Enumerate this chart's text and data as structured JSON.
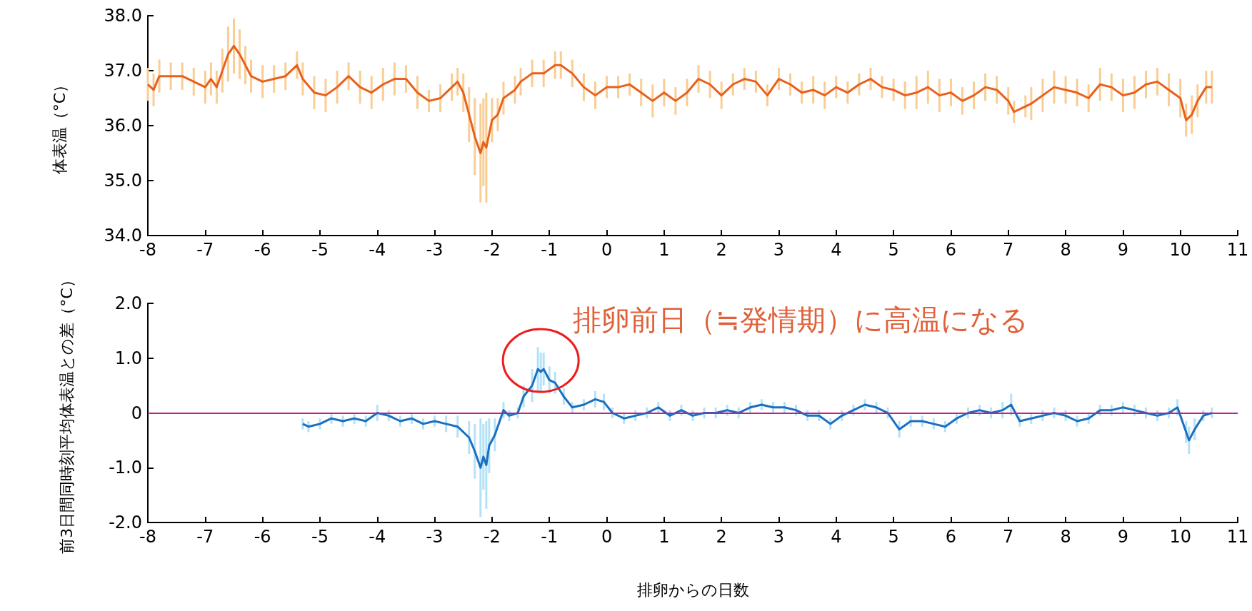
{
  "chart_data": [
    {
      "type": "line",
      "ylabel": "体表温（°C）",
      "xlim": [
        -8,
        11
      ],
      "xticks": [
        -8,
        -7,
        -6,
        -5,
        -4,
        -3,
        -2,
        -1,
        0,
        1,
        2,
        3,
        4,
        5,
        6,
        7,
        8,
        9,
        10,
        11
      ],
      "ylim": [
        34,
        38
      ],
      "yticks": [
        {
          "value": 34,
          "label": "34.0"
        },
        {
          "value": 35,
          "label": "35.0"
        },
        {
          "value": 36,
          "label": "36.0"
        },
        {
          "value": 37,
          "label": "37.0"
        },
        {
          "value": 38,
          "label": "38.0"
        }
      ],
      "marker": "none",
      "series": [
        {
          "color": "#e8601c",
          "x": [
            -8.0,
            -7.9,
            -7.8,
            -7.6,
            -7.4,
            -7.2,
            -7.0,
            -6.9,
            -6.8,
            -6.7,
            -6.6,
            -6.5,
            -6.4,
            -6.3,
            -6.2,
            -6.0,
            -5.8,
            -5.6,
            -5.4,
            -5.3,
            -5.1,
            -4.9,
            -4.7,
            -4.5,
            -4.3,
            -4.1,
            -3.9,
            -3.7,
            -3.5,
            -3.3,
            -3.1,
            -2.9,
            -2.7,
            -2.6,
            -2.5,
            -2.4,
            -2.3,
            -2.2,
            -2.15,
            -2.1,
            -2.0,
            -1.9,
            -1.8,
            -1.6,
            -1.5,
            -1.3,
            -1.1,
            -0.9,
            -0.8,
            -0.6,
            -0.4,
            -0.2,
            0.0,
            0.2,
            0.4,
            0.6,
            0.8,
            1.0,
            1.2,
            1.4,
            1.6,
            1.8,
            2.0,
            2.2,
            2.4,
            2.6,
            2.8,
            3.0,
            3.2,
            3.4,
            3.6,
            3.8,
            4.0,
            4.2,
            4.4,
            4.6,
            4.8,
            5.0,
            5.2,
            5.4,
            5.6,
            5.8,
            6.0,
            6.2,
            6.4,
            6.6,
            6.8,
            7.0,
            7.1,
            7.3,
            7.4,
            7.6,
            7.8,
            8.0,
            8.2,
            8.4,
            8.6,
            8.8,
            9.0,
            9.2,
            9.4,
            9.6,
            9.8,
            10.0,
            10.1,
            10.2,
            10.3,
            10.45,
            10.55
          ],
          "values": [
            36.75,
            36.65,
            36.9,
            36.9,
            36.9,
            36.8,
            36.7,
            36.85,
            36.7,
            37.0,
            37.3,
            37.45,
            37.3,
            37.1,
            36.9,
            36.8,
            36.85,
            36.9,
            37.1,
            36.85,
            36.6,
            36.55,
            36.7,
            36.9,
            36.7,
            36.6,
            36.75,
            36.85,
            36.85,
            36.6,
            36.45,
            36.5,
            36.7,
            36.8,
            36.6,
            36.2,
            35.8,
            35.5,
            35.7,
            35.6,
            36.1,
            36.2,
            36.5,
            36.65,
            36.8,
            36.95,
            36.95,
            37.1,
            37.1,
            36.95,
            36.7,
            36.55,
            36.7,
            36.7,
            36.75,
            36.6,
            36.45,
            36.6,
            36.45,
            36.6,
            36.85,
            36.75,
            36.55,
            36.75,
            36.85,
            36.8,
            36.55,
            36.85,
            36.75,
            36.6,
            36.65,
            36.55,
            36.7,
            36.6,
            36.75,
            36.85,
            36.7,
            36.65,
            36.55,
            36.6,
            36.7,
            36.55,
            36.6,
            36.45,
            36.55,
            36.7,
            36.65,
            36.45,
            36.25,
            36.35,
            36.4,
            36.55,
            36.7,
            36.65,
            36.6,
            36.5,
            36.75,
            36.7,
            36.55,
            36.6,
            36.75,
            36.8,
            36.65,
            36.5,
            36.1,
            36.2,
            36.45,
            36.7,
            36.7
          ],
          "errors": [
            0.3,
            0.3,
            0.3,
            0.25,
            0.25,
            0.25,
            0.3,
            0.3,
            0.3,
            0.4,
            0.5,
            0.5,
            0.45,
            0.35,
            0.3,
            0.3,
            0.25,
            0.25,
            0.25,
            0.3,
            0.3,
            0.3,
            0.3,
            0.25,
            0.3,
            0.3,
            0.3,
            0.3,
            0.25,
            0.3,
            0.2,
            0.25,
            0.25,
            0.25,
            0.35,
            0.5,
            0.7,
            0.9,
            0.8,
            1.0,
            0.4,
            0.3,
            0.3,
            0.25,
            0.25,
            0.25,
            0.25,
            0.25,
            0.25,
            0.25,
            0.25,
            0.25,
            0.2,
            0.2,
            0.2,
            0.25,
            0.3,
            0.25,
            0.25,
            0.25,
            0.25,
            0.25,
            0.25,
            0.2,
            0.2,
            0.2,
            0.2,
            0.2,
            0.2,
            0.2,
            0.25,
            0.25,
            0.2,
            0.2,
            0.2,
            0.2,
            0.2,
            0.2,
            0.25,
            0.3,
            0.3,
            0.3,
            0.25,
            0.25,
            0.25,
            0.25,
            0.25,
            0.25,
            0.2,
            0.2,
            0.3,
            0.3,
            0.3,
            0.25,
            0.25,
            0.25,
            0.3,
            0.25,
            0.3,
            0.3,
            0.25,
            0.25,
            0.3,
            0.35,
            0.3,
            0.35,
            0.3,
            0.3,
            0.3
          ]
        }
      ]
    },
    {
      "type": "line",
      "xlabel": "排卵からの日数",
      "ylabel": "前3日間同時刻平均体表温との差（°C）",
      "xlim": [
        -8,
        11
      ],
      "xticks": [
        -8,
        -7,
        -6,
        -5,
        -4,
        -3,
        -2,
        -1,
        0,
        1,
        2,
        3,
        4,
        5,
        6,
        7,
        8,
        9,
        10,
        11
      ],
      "ylim": [
        -2,
        2
      ],
      "yticks": [
        {
          "value": -2,
          "label": "-2.0"
        },
        {
          "value": -1,
          "label": "-1.0"
        },
        0,
        {
          "value": 1,
          "label": "1.0"
        },
        {
          "value": 2,
          "label": "2.0"
        }
      ],
      "marker": "none",
      "ref_lines": [
        {
          "axis": "y",
          "value": 0,
          "color": "#c0208f"
        }
      ],
      "annotations": [
        {
          "text": "排卵前日（≒発情期）に高温になる",
          "x": -1.15,
          "y": 0.8
        }
      ],
      "series": [
        {
          "color": "#1a6fbf",
          "x": [
            -5.3,
            -5.2,
            -5.0,
            -4.8,
            -4.6,
            -4.4,
            -4.2,
            -4.0,
            -3.8,
            -3.6,
            -3.4,
            -3.2,
            -3.0,
            -2.8,
            -2.6,
            -2.4,
            -2.3,
            -2.2,
            -2.15,
            -2.1,
            -2.05,
            -1.95,
            -1.8,
            -1.7,
            -1.55,
            -1.45,
            -1.3,
            -1.2,
            -1.15,
            -1.1,
            -1.0,
            -0.9,
            -0.75,
            -0.6,
            -0.4,
            -0.2,
            -0.05,
            0.1,
            0.3,
            0.5,
            0.7,
            0.9,
            1.1,
            1.3,
            1.5,
            1.7,
            1.9,
            2.1,
            2.3,
            2.5,
            2.7,
            2.9,
            3.1,
            3.3,
            3.5,
            3.7,
            3.9,
            4.1,
            4.3,
            4.5,
            4.7,
            4.9,
            5.1,
            5.3,
            5.5,
            5.7,
            5.9,
            6.1,
            6.3,
            6.5,
            6.7,
            6.9,
            7.05,
            7.2,
            7.4,
            7.6,
            7.8,
            8.0,
            8.2,
            8.4,
            8.6,
            8.8,
            9.0,
            9.2,
            9.4,
            9.6,
            9.8,
            9.95,
            10.1,
            10.15,
            10.25,
            10.4,
            10.55
          ],
          "values": [
            -0.2,
            -0.25,
            -0.2,
            -0.1,
            -0.15,
            -0.1,
            -0.15,
            0.0,
            -0.05,
            -0.15,
            -0.1,
            -0.2,
            -0.15,
            -0.2,
            -0.25,
            -0.45,
            -0.7,
            -1.0,
            -0.8,
            -0.95,
            -0.6,
            -0.4,
            0.05,
            -0.05,
            0.0,
            0.3,
            0.5,
            0.8,
            0.75,
            0.8,
            0.6,
            0.55,
            0.3,
            0.1,
            0.15,
            0.25,
            0.2,
            0.0,
            -0.1,
            -0.05,
            0.0,
            0.1,
            -0.05,
            0.05,
            -0.05,
            0.0,
            0.0,
            0.05,
            0.0,
            0.1,
            0.15,
            0.1,
            0.1,
            0.05,
            -0.05,
            -0.05,
            -0.2,
            -0.05,
            0.05,
            0.15,
            0.1,
            0.0,
            -0.3,
            -0.15,
            -0.15,
            -0.2,
            -0.25,
            -0.1,
            0.0,
            0.05,
            0.0,
            0.05,
            0.15,
            -0.15,
            -0.1,
            -0.05,
            0.0,
            -0.05,
            -0.15,
            -0.1,
            0.05,
            0.05,
            0.1,
            0.05,
            0.0,
            -0.05,
            0.0,
            0.1,
            -0.35,
            -0.5,
            -0.3,
            -0.05,
            0.0
          ],
          "errors": [
            0.1,
            0.1,
            0.1,
            0.1,
            0.1,
            0.1,
            0.1,
            0.15,
            0.1,
            0.1,
            0.1,
            0.1,
            0.1,
            0.15,
            0.2,
            0.3,
            0.5,
            0.9,
            0.6,
            0.8,
            0.5,
            0.3,
            0.15,
            0.1,
            0.1,
            0.2,
            0.3,
            0.4,
            0.35,
            0.3,
            0.25,
            0.2,
            0.15,
            0.1,
            0.1,
            0.15,
            0.15,
            0.1,
            0.1,
            0.1,
            0.1,
            0.1,
            0.1,
            0.1,
            0.1,
            0.1,
            0.1,
            0.1,
            0.1,
            0.1,
            0.1,
            0.1,
            0.1,
            0.1,
            0.1,
            0.1,
            0.1,
            0.1,
            0.1,
            0.1,
            0.1,
            0.1,
            0.15,
            0.1,
            0.1,
            0.1,
            0.1,
            0.1,
            0.1,
            0.1,
            0.1,
            0.15,
            0.2,
            0.1,
            0.1,
            0.1,
            0.1,
            0.1,
            0.1,
            0.1,
            0.1,
            0.1,
            0.1,
            0.1,
            0.1,
            0.1,
            0.1,
            0.15,
            0.2,
            0.25,
            0.2,
            0.1,
            0.1
          ]
        }
      ]
    }
  ]
}
